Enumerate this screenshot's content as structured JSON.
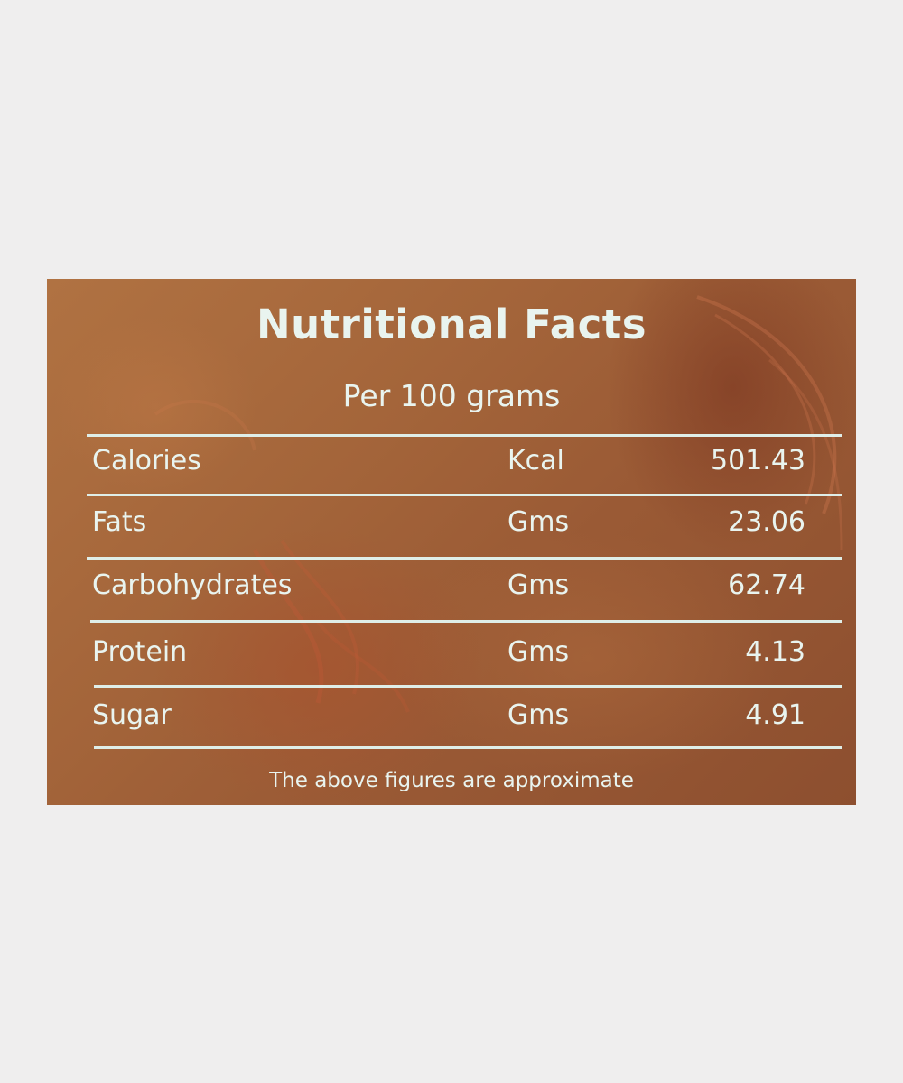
{
  "panel": {
    "title": "Nutritional Facts",
    "subtitle": "Per 100 grams",
    "rows": [
      {
        "nutrient": "Calories",
        "unit": "Kcal",
        "amount": "501.43"
      },
      {
        "nutrient": "Fats",
        "unit": "Gms",
        "amount": "23.06"
      },
      {
        "nutrient": "Carbohydrates",
        "unit": "Gms",
        "amount": "62.74"
      },
      {
        "nutrient": "Protein",
        "unit": "Gms",
        "amount": "4.13"
      },
      {
        "nutrient": "Sugar",
        "unit": "Gms",
        "amount": "4.91"
      }
    ],
    "footnote": "The above figures are approximate"
  },
  "colors": {
    "page_background": "#efeeee",
    "label_brown": "#a4653a",
    "text_mint": "#e9f4ef"
  }
}
